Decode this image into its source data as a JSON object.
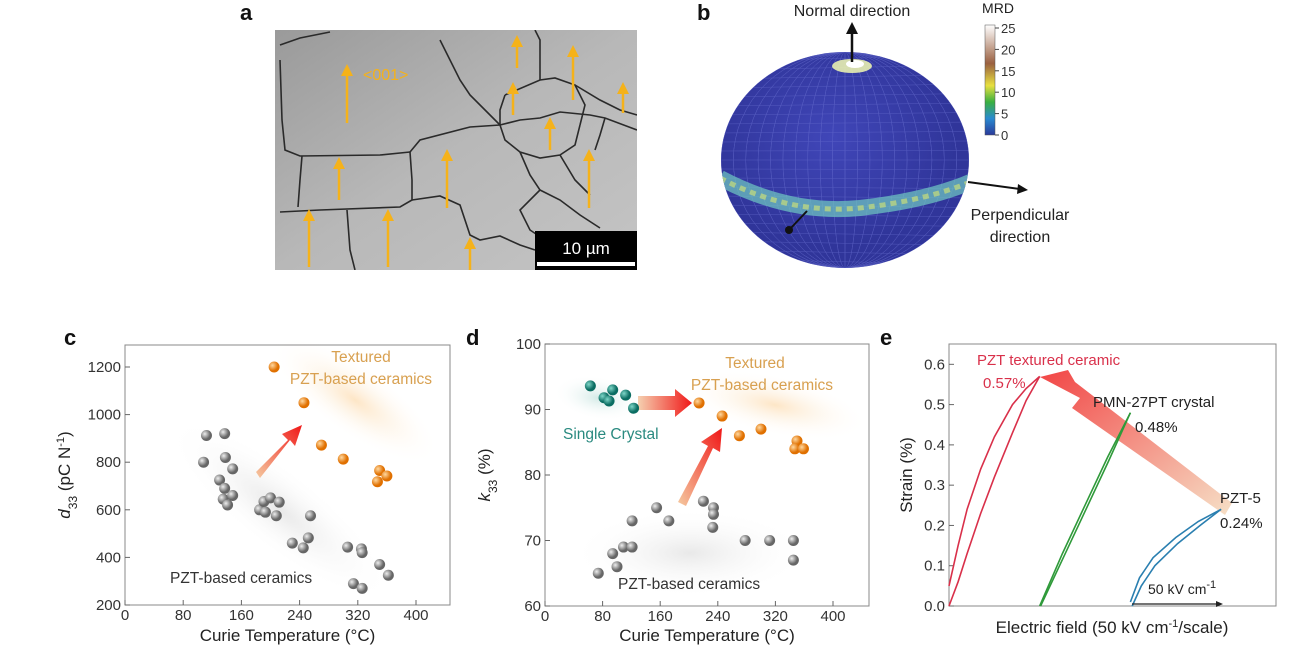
{
  "panel_labels": {
    "a": "a",
    "b": "b",
    "c": "c",
    "d": "d",
    "e": "e"
  },
  "panel_a": {
    "direction_label": "<001>",
    "scale_bar": "10 µm",
    "arrow_color": "#f5b21a"
  },
  "panel_b": {
    "normal_direction": "Normal direction",
    "perpendicular_line1": "Perpendicular",
    "perpendicular_line2": "direction",
    "colorbar_title": "MRD",
    "colorbar_ticks": [
      "25",
      "20",
      "15",
      "10",
      "5",
      "0"
    ],
    "sphere_color": "#3b3fae"
  },
  "chart_data": [
    {
      "panel": "c",
      "type": "scatter",
      "xlabel": "Curie Temperature (°C)",
      "xlabel_parts": {
        "pre": "Curie Temperature (",
        "sup": "o",
        "post": "C)"
      },
      "ylabel_parts": {
        "var": "d",
        "sub": "33",
        "unit": " (pC N",
        "sup": "-1",
        "close": ")"
      },
      "xlim": [
        0,
        450
      ],
      "ylim": [
        200,
        1300
      ],
      "xticks": [
        "0",
        "80",
        "160",
        "240",
        "320",
        "400"
      ],
      "yticks": [
        "200",
        "400",
        "600",
        "800",
        "1000",
        "1200"
      ],
      "grid": false,
      "annotations": {
        "textured_1": "Textured",
        "textured_2": "PZT-based ceramics",
        "ceramics": "PZT-based ceramics"
      },
      "series": [
        {
          "group": "PZT-based ceramics",
          "color": "#8a8a8a",
          "points": [
            [
              108,
              800
            ],
            [
              112,
              912
            ],
            [
              137,
              920
            ],
            [
              138,
              820
            ],
            [
              148,
              772
            ],
            [
              130,
              725
            ],
            [
              137,
              690
            ],
            [
              135,
              645
            ],
            [
              148,
              660
            ],
            [
              141,
              620
            ],
            [
              185,
              600
            ],
            [
              193,
              590
            ],
            [
              191,
              635
            ],
            [
              200,
              650
            ],
            [
              212,
              632
            ],
            [
              208,
              575
            ],
            [
              255,
              575
            ],
            [
              230,
              460
            ],
            [
              245,
              440
            ],
            [
              252,
              482
            ],
            [
              306,
              443
            ],
            [
              325,
              436
            ],
            [
              326,
              420
            ],
            [
              350,
              370
            ],
            [
              362,
              325
            ],
            [
              314,
              290
            ],
            [
              326,
              270
            ]
          ]
        },
        {
          "group": "Textured PZT-based ceramics",
          "color": "#f08a1c",
          "points": [
            [
              205,
              1200
            ],
            [
              246,
              1050
            ],
            [
              270,
              872
            ],
            [
              300,
              813
            ],
            [
              350,
              765
            ],
            [
              360,
              742
            ],
            [
              347,
              718
            ]
          ]
        }
      ]
    },
    {
      "panel": "d",
      "type": "scatter",
      "xlabel": "Curie Temperature (°C)",
      "xlabel_parts": {
        "pre": "Curie Temperature (",
        "sup": "o",
        "post": "C)"
      },
      "ylabel_parts": {
        "var": "k",
        "sub": "33",
        "unit": " (%)"
      },
      "xlim": [
        0,
        450
      ],
      "ylim": [
        60,
        100
      ],
      "xticks": [
        "0",
        "80",
        "160",
        "240",
        "320",
        "400"
      ],
      "yticks": [
        "60",
        "70",
        "80",
        "90",
        "100"
      ],
      "grid": false,
      "annotations": {
        "textured_1": "Textured",
        "textured_2": "PZT-based ceramics",
        "single": "Single Crystal",
        "ceramics": "PZT-based ceramics"
      },
      "series": [
        {
          "group": "Single Crystal",
          "color": "#138a7e",
          "points": [
            [
              63,
              93.6
            ],
            [
              82,
              91.8
            ],
            [
              94,
              93
            ],
            [
              89,
              91.3
            ],
            [
              112,
              92.2
            ],
            [
              123,
              90.2
            ]
          ]
        },
        {
          "group": "Textured PZT-based ceramics",
          "color": "#f08a1c",
          "points": [
            [
              214,
              91
            ],
            [
              246,
              89
            ],
            [
              270,
              86
            ],
            [
              300,
              87
            ],
            [
              350,
              85.2
            ],
            [
              347,
              84
            ],
            [
              359,
              84
            ]
          ]
        },
        {
          "group": "PZT-based ceramics",
          "color": "#8a8a8a",
          "points": [
            [
              74,
              65
            ],
            [
              94,
              68
            ],
            [
              100,
              66
            ],
            [
              109,
              69
            ],
            [
              121,
              69
            ],
            [
              121,
              73
            ],
            [
              155,
              75
            ],
            [
              172,
              73
            ],
            [
              220,
              76
            ],
            [
              234,
              75
            ],
            [
              234,
              74
            ],
            [
              233,
              72
            ],
            [
              278,
              70
            ],
            [
              312,
              70
            ],
            [
              345,
              70
            ],
            [
              345,
              67
            ]
          ]
        }
      ]
    },
    {
      "panel": "e",
      "type": "line",
      "xlabel_parts": {
        "pre": "Electric field (50 kV cm",
        "sup": "-1",
        "post": "/scale)"
      },
      "ylabel": "Strain (%)",
      "xlim": [
        0,
        3.6
      ],
      "ylim": [
        0,
        0.65
      ],
      "yticks": [
        "0.0",
        "0.1",
        "0.2",
        "0.3",
        "0.4",
        "0.5",
        "0.6"
      ],
      "scale_bar_parts": {
        "pre": "50 kV cm",
        "sup": "-1"
      },
      "series": [
        {
          "name": "PZT textured ceramic",
          "value_label": "0.57%",
          "color": "#d9304a",
          "branches": [
            {
              "x": [
                0,
                0.1,
                0.2,
                0.35,
                0.5,
                0.7,
                0.85,
                1.0
              ],
              "y": [
                0.05,
                0.15,
                0.24,
                0.34,
                0.42,
                0.5,
                0.54,
                0.57
              ]
            },
            {
              "x": [
                0,
                0.1,
                0.2,
                0.35,
                0.5,
                0.7,
                0.85,
                1.0
              ],
              "y": [
                0,
                0.06,
                0.13,
                0.23,
                0.32,
                0.43,
                0.51,
                0.57
              ]
            }
          ]
        },
        {
          "name": "PMN-27PT crystal",
          "value_label": "0.48%",
          "color": "#2f9a3a",
          "branches": [
            {
              "x": [
                1.0,
                1.25,
                1.5,
                1.75,
                2.0
              ],
              "y": [
                0,
                0.13,
                0.25,
                0.37,
                0.48
              ]
            },
            {
              "x": [
                1.01,
                1.26,
                1.51,
                1.76,
                2.0
              ],
              "y": [
                0,
                0.12,
                0.24,
                0.36,
                0.48
              ]
            }
          ]
        },
        {
          "name": "PZT-5",
          "value_label": "0.24%",
          "color": "#2a7fb0",
          "branches": [
            {
              "x": [
                2.0,
                2.1,
                2.25,
                2.5,
                2.75,
                3.0
              ],
              "y": [
                0.01,
                0.07,
                0.12,
                0.17,
                0.21,
                0.24
              ]
            },
            {
              "x": [
                2.02,
                2.12,
                2.27,
                2.52,
                2.77,
                3.0
              ],
              "y": [
                0,
                0.05,
                0.1,
                0.155,
                0.2,
                0.24
              ]
            }
          ]
        }
      ]
    }
  ]
}
